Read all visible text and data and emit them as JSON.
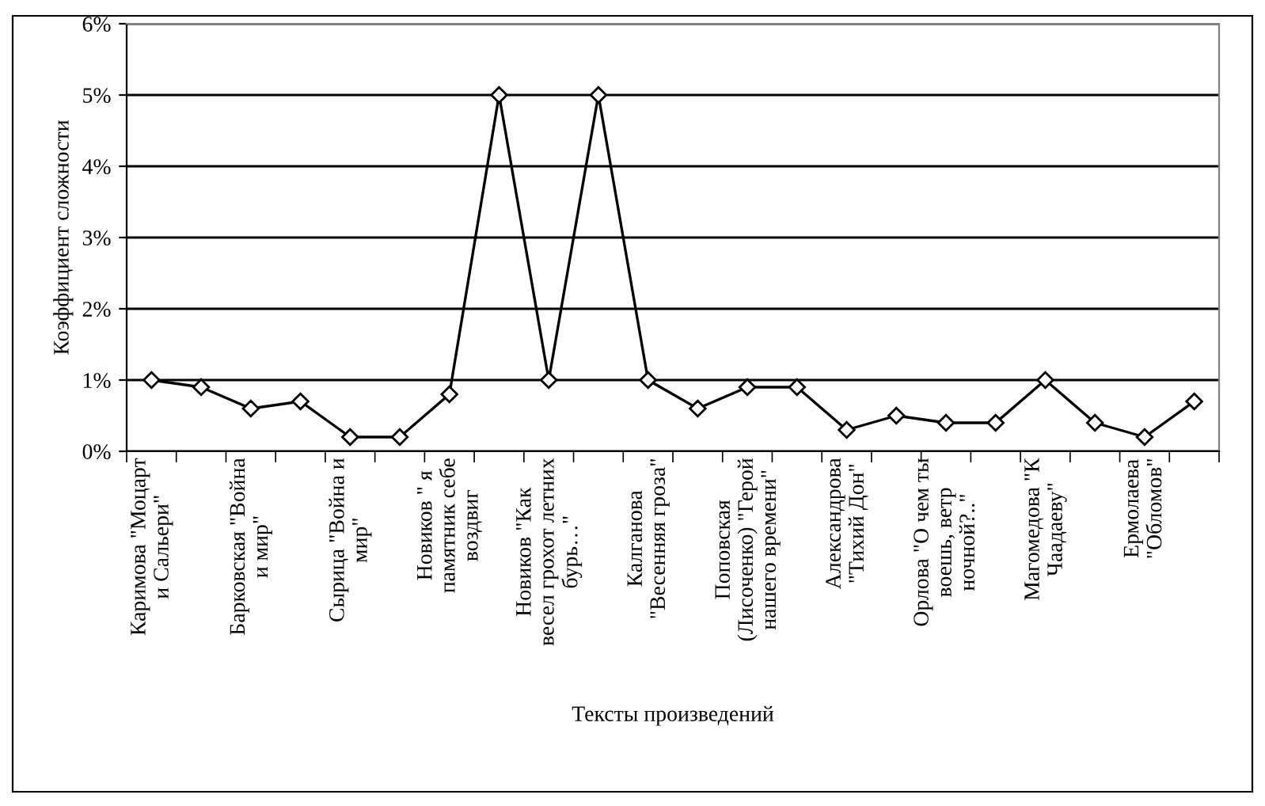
{
  "chart_data": {
    "type": "line",
    "xlabel": "Тексты произведений",
    "ylabel": "Коэффициент сложности",
    "categories": [
      "Каримова \"Моцарт\nи Сальери\"",
      null,
      "Барковская \"Война\nи мир\"",
      null,
      "Сырица \"Война и\nмир\"",
      null,
      "Новиков \" я\nпамятник себе\nвоздвиг",
      null,
      "Новиков \"Как\nвесел грохот летних\nбурь…\"",
      null,
      "Калганова\n\"Весенняя гроза\"",
      null,
      "Поповская\n(Лисоченко) \"Герой\nнашего времени\"",
      null,
      "Александрова\n\"Тихий Дон\"",
      null,
      "Орлова \"О чем ты\nвоешь, ветр\nночной?..\"",
      null,
      "Магомедова \"К\nЧаадаеву\"",
      null,
      "Ермолаева\n\"Обломов\"",
      null
    ],
    "series": [
      {
        "color": "#000000",
        "values": [
          1.0,
          0.9,
          0.6,
          0.7,
          0.2,
          0.2,
          0.8,
          5.0,
          1.0,
          5.0,
          1.0,
          0.6,
          0.9,
          0.9,
          0.3,
          0.5,
          0.4,
          0.4,
          1.0,
          0.4,
          0.2,
          0.7
        ]
      }
    ],
    "ylim": [
      0,
      6
    ],
    "yticks": [
      {
        "value": 0,
        "label": "0%"
      },
      {
        "value": 1,
        "label": "1%"
      },
      {
        "value": 2,
        "label": "2%"
      },
      {
        "value": 3,
        "label": "3%"
      },
      {
        "value": 4,
        "label": "4%"
      },
      {
        "value": 5,
        "label": "5%"
      },
      {
        "value": 6,
        "label": "6%"
      }
    ],
    "grid": "y",
    "marker": "diamond",
    "line_style": "solid"
  }
}
